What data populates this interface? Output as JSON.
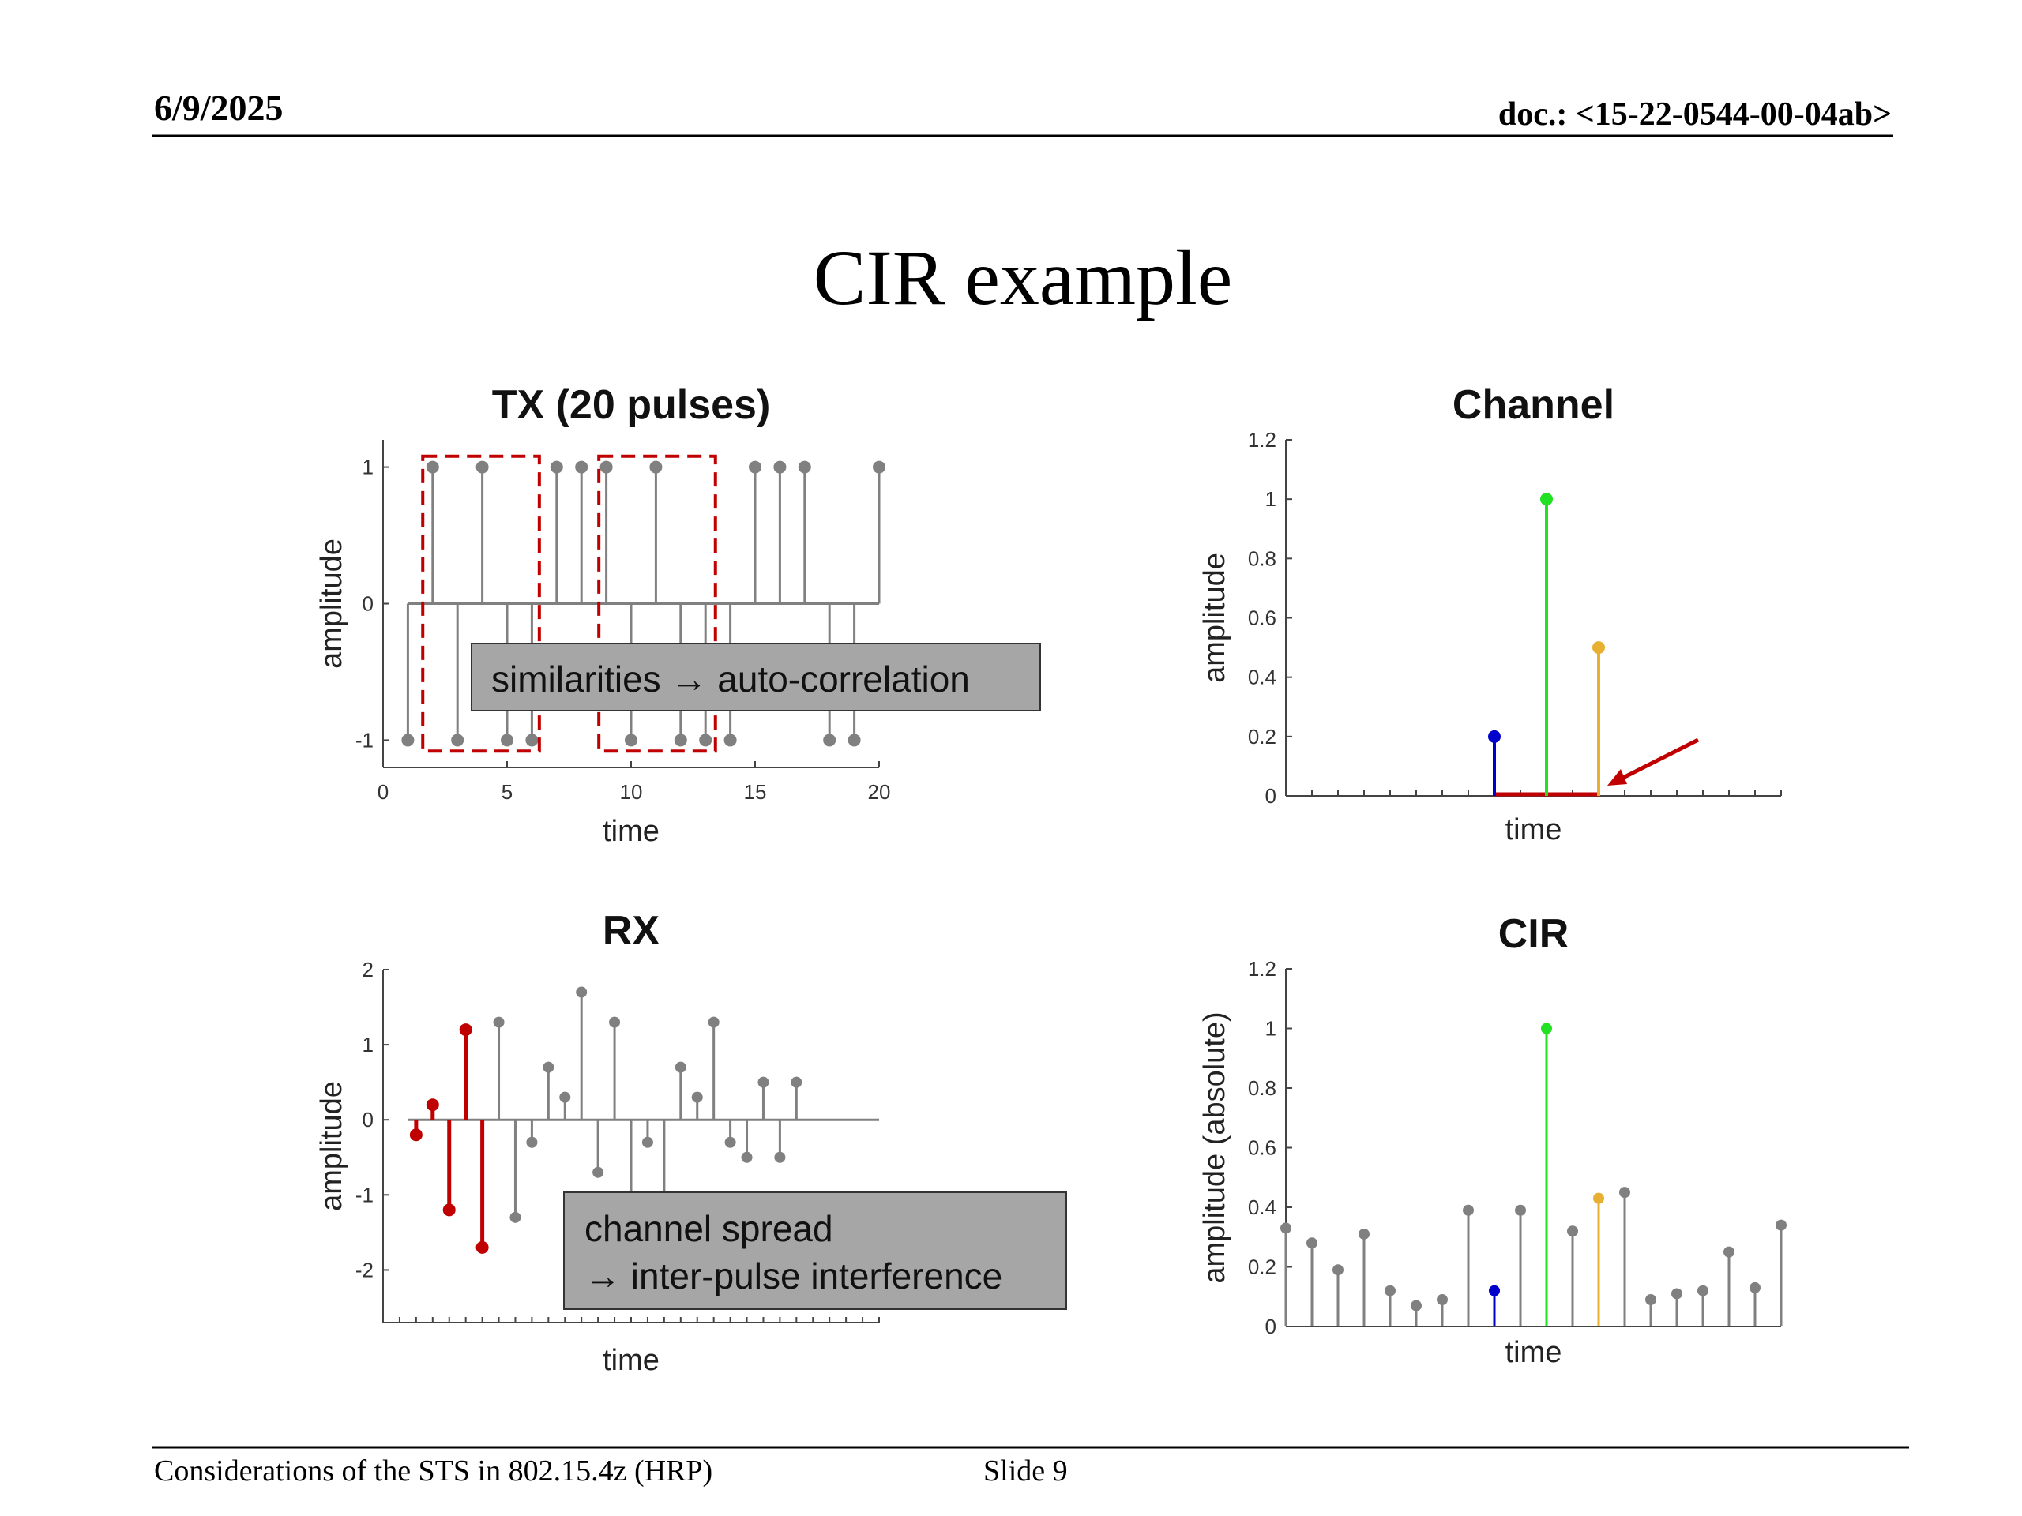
{
  "header": {
    "date": "6/9/2025",
    "doc": "doc.: <15-22-0544-00-04ab>"
  },
  "slide_title": "CIR example",
  "footer": {
    "left": "Considerations of the STS in 802.15.4z (HRP)",
    "center": "Slide 9"
  },
  "annotations": {
    "tx_box": "similarities → auto-correlation",
    "rx_line1": "channel spread",
    "rx_line2": "→ inter-pulse interference"
  },
  "colors": {
    "stem": "#808080",
    "red": "#c00000",
    "blue": "#0000cc",
    "green": "#22e022",
    "orange": "#e8b030",
    "annotation_bg": "#a6a6a6"
  },
  "chart_data": [
    {
      "id": "tx",
      "type": "stem",
      "title": "TX (20 pulses)",
      "xlabel": "time",
      "ylabel": "amplitude",
      "xlim": [
        0,
        20
      ],
      "ylim": [
        -1.2,
        1.2
      ],
      "xticks": [
        0,
        5,
        10,
        15,
        20
      ],
      "yticks": [
        -1,
        0,
        1
      ],
      "x": [
        1,
        2,
        3,
        4,
        5,
        6,
        7,
        8,
        9,
        10,
        11,
        12,
        13,
        14,
        15,
        16,
        17,
        18,
        19,
        20
      ],
      "values": [
        -1,
        1,
        -1,
        1,
        -1,
        -1,
        1,
        1,
        1,
        -1,
        1,
        -1,
        -1,
        -1,
        1,
        1,
        1,
        -1,
        -1,
        1
      ],
      "highlight_ranges": [
        [
          1.6,
          6.3
        ],
        [
          8.7,
          13.4
        ]
      ]
    },
    {
      "id": "channel",
      "type": "stem",
      "title": "Channel",
      "xlabel": "time",
      "ylabel": "amplitude",
      "ylim": [
        0,
        1.2
      ],
      "yticks": [
        0,
        0.2,
        0.4,
        0.6,
        0.8,
        1,
        1.2
      ],
      "taps": [
        {
          "position": 8,
          "value": 0.2,
          "color": "blue"
        },
        {
          "position": 10,
          "value": 1.0,
          "color": "green"
        },
        {
          "position": 12,
          "value": 0.5,
          "color": "orange"
        }
      ]
    },
    {
      "id": "rx",
      "type": "stem",
      "title": "RX",
      "xlabel": "time",
      "ylabel": "amplitude",
      "ylim": [
        -2.7,
        2
      ],
      "yticks": [
        -2,
        -1,
        0,
        1,
        2
      ],
      "highlighted": [
        {
          "position": 2,
          "value": -0.2
        },
        {
          "position": 3,
          "value": 0.2
        },
        {
          "position": 4,
          "value": -1.2
        },
        {
          "position": 5,
          "value": 1.2
        },
        {
          "position": 6,
          "value": -1.7
        }
      ],
      "others": [
        {
          "position": 7,
          "value": 1.3
        },
        {
          "position": 8,
          "value": -1.3
        },
        {
          "position": 9,
          "value": -0.3
        },
        {
          "position": 10,
          "value": 0.7
        },
        {
          "position": 11,
          "value": 0.3
        },
        {
          "position": 12,
          "value": 1.7
        },
        {
          "position": 13,
          "value": -0.7
        },
        {
          "position": 14,
          "value": 1.3
        },
        {
          "position": 15,
          "value": -1.7
        },
        {
          "position": 16,
          "value": -0.3
        },
        {
          "position": 17,
          "value": -1.2
        },
        {
          "position": 18,
          "value": 0.7
        },
        {
          "position": 19,
          "value": 0.3
        },
        {
          "position": 20,
          "value": 1.3
        },
        {
          "position": 21,
          "value": -0.3
        },
        {
          "position": 22,
          "value": -0.5
        },
        {
          "position": 23,
          "value": 0.5
        },
        {
          "position": 24,
          "value": -0.5
        },
        {
          "position": 25,
          "value": 0.5
        }
      ]
    },
    {
      "id": "cir",
      "type": "stem",
      "title": "CIR",
      "xlabel": "time",
      "ylabel": "amplitude (absolute)",
      "ylim": [
        0,
        1.2
      ],
      "yticks": [
        0,
        0.2,
        0.4,
        0.6,
        0.8,
        1,
        1.2
      ],
      "values": [
        0.33,
        0.28,
        0.19,
        0.31,
        0.12,
        0.07,
        0.09,
        0.39,
        0.12,
        0.39,
        1.0,
        0.32,
        0.43,
        0.45,
        0.09,
        0.11,
        0.12,
        0.25,
        0.13,
        0.34
      ],
      "highlight_colors": {
        "8": "blue",
        "10": "green",
        "12": "orange"
      }
    }
  ]
}
